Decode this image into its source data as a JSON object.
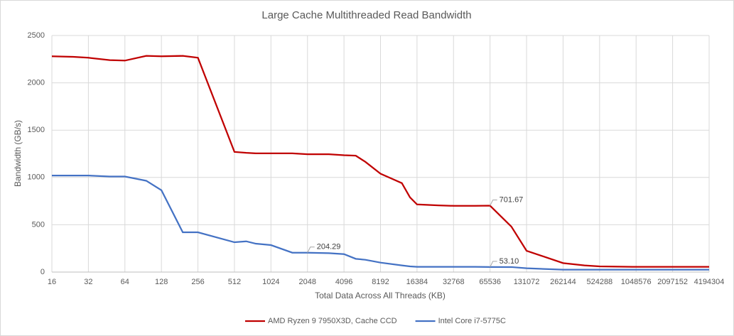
{
  "chart_data": {
    "type": "line",
    "title": "Large Cache Multithreaded Read Bandwidth",
    "x_label": "Total Data Across All Threads (KB)",
    "y_label": "Bandwidth (GB/s)",
    "x": [
      16,
      24,
      32,
      48,
      64,
      96,
      128,
      192,
      256,
      512,
      640,
      768,
      1024,
      1536,
      2048,
      3072,
      4096,
      5120,
      6144,
      8192,
      12288,
      14336,
      16384,
      24576,
      32768,
      49152,
      65536,
      98304,
      131072,
      262144,
      393216,
      524288,
      1048576,
      2097152,
      4194304
    ],
    "series": [
      {
        "name": "AMD Ryzen 9 7950X3D, Cache CCD",
        "color": "#c00000",
        "values": [
          2280,
          2275,
          2265,
          2240,
          2235,
          2285,
          2280,
          2285,
          2265,
          1270,
          1260,
          1255,
          1255,
          1255,
          1245,
          1245,
          1235,
          1230,
          1165,
          1040,
          940,
          790,
          715,
          705,
          700,
          700,
          701.67,
          480,
          225,
          95,
          70,
          60,
          55,
          55,
          55
        ],
        "value_labels": [
          null,
          null,
          null,
          null,
          null,
          null,
          null,
          null,
          null,
          null,
          null,
          null,
          null,
          null,
          null,
          null,
          null,
          null,
          null,
          null,
          null,
          null,
          null,
          null,
          null,
          null,
          "701.67",
          null,
          null,
          null,
          null,
          null,
          null,
          null,
          null
        ]
      },
      {
        "name": "Intel Core i7-5775C",
        "color": "#4472c4",
        "values": [
          1020,
          1020,
          1020,
          1010,
          1010,
          965,
          865,
          420,
          420,
          315,
          325,
          300,
          285,
          205,
          204.29,
          200,
          190,
          140,
          130,
          100,
          70,
          60,
          55,
          55,
          55,
          55,
          53.1,
          53,
          40,
          25,
          25,
          25,
          25,
          25,
          25
        ],
        "value_labels": [
          null,
          null,
          null,
          null,
          null,
          null,
          null,
          null,
          null,
          null,
          null,
          null,
          null,
          null,
          "204.29",
          null,
          null,
          null,
          null,
          null,
          null,
          null,
          null,
          null,
          null,
          null,
          "53.10",
          null,
          null,
          null,
          null,
          null,
          null,
          null,
          null
        ]
      }
    ],
    "xscale": "log2",
    "xlim": [
      16,
      4194304
    ],
    "xticks": [
      16,
      32,
      64,
      128,
      256,
      512,
      1024,
      2048,
      4096,
      8192,
      16384,
      32768,
      65536,
      131072,
      262144,
      524288,
      1048576,
      2097152,
      4194304
    ],
    "ylim": [
      0,
      2500
    ],
    "yticks": [
      0,
      500,
      1000,
      1500,
      2000,
      2500
    ],
    "grid": true,
    "legend": "bottom"
  }
}
